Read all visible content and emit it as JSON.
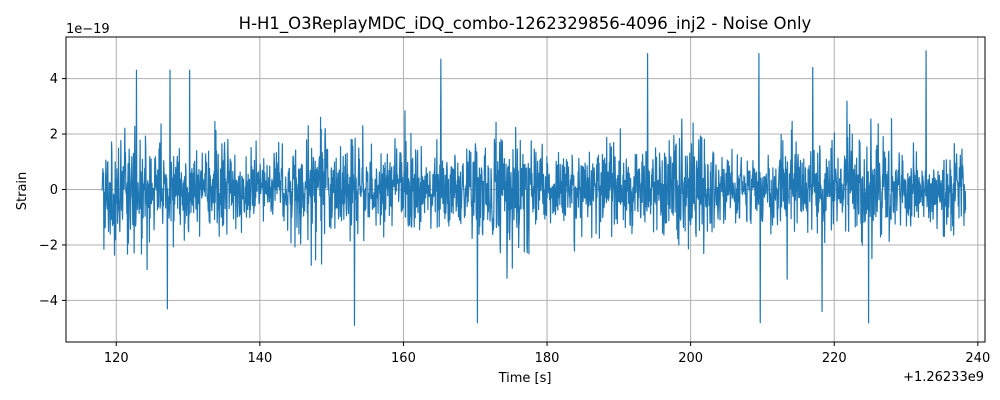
{
  "chart_data": {
    "type": "line",
    "title": "H-H1_O3ReplayMDC_iDQ_combo-1262329856-4096_inj2 - Noise Only",
    "xlabel": "Time [s]",
    "ylabel": "Strain",
    "x_offset_label": "+1.26233e9",
    "y_scale_label": "1e−19",
    "xlim": [
      113,
      241
    ],
    "ylim": [
      -5.5,
      5.5
    ],
    "x_ticks": [
      120,
      140,
      160,
      180,
      200,
      220,
      240
    ],
    "x_tick_labels": [
      "120",
      "140",
      "160",
      "180",
      "200",
      "220",
      "240"
    ],
    "y_ticks": [
      -4,
      -2,
      0,
      2,
      4
    ],
    "y_tick_labels": [
      "−4",
      "−2",
      "0",
      "2",
      "4"
    ],
    "grid": true,
    "series": [
      {
        "color": "#1f77b4",
        "x_range": [
          118,
          238.3
        ],
        "typical_band": [
          -2.0,
          2.0
        ],
        "max": 5.0,
        "min": -4.9,
        "notable_peaks": [
          {
            "x": 122.8,
            "y": 4.3
          },
          {
            "x": 127.5,
            "y": 4.3
          },
          {
            "x": 130.2,
            "y": 4.3
          },
          {
            "x": 165.2,
            "y": 4.7
          },
          {
            "x": 194.0,
            "y": 4.9
          },
          {
            "x": 209.5,
            "y": 4.9
          },
          {
            "x": 232.8,
            "y": 5.0
          },
          {
            "x": 217.0,
            "y": 4.4
          }
        ],
        "notable_troughs": [
          {
            "x": 127.1,
            "y": -4.3
          },
          {
            "x": 153.2,
            "y": -4.9
          },
          {
            "x": 170.3,
            "y": -4.8
          },
          {
            "x": 209.7,
            "y": -4.8
          },
          {
            "x": 224.8,
            "y": -4.8
          },
          {
            "x": 218.3,
            "y": -4.4
          }
        ]
      }
    ]
  }
}
